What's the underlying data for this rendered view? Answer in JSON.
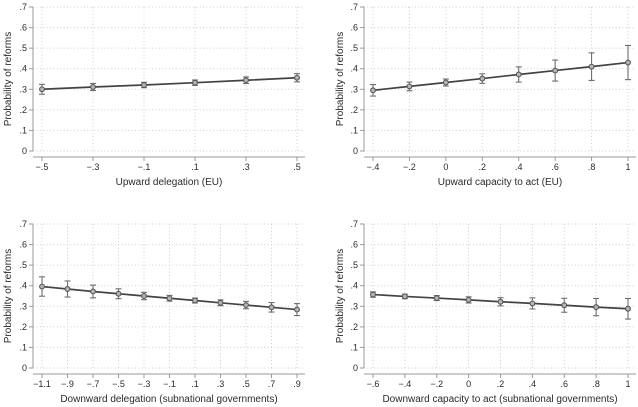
{
  "figure": {
    "ylabel": "Probability of reforms",
    "background": "#ffffff"
  },
  "colors": {
    "line": "#434343",
    "marker_fill": "#b5b5b5",
    "marker_stroke": "#565656",
    "error_bar": "#6d6d6d",
    "grid": "#c9cdd0",
    "axis": "#9a9a9a",
    "text": "#2b2b2b"
  },
  "chart_data": [
    {
      "type": "line",
      "title": "",
      "xlabel": "Upward delegation (EU)",
      "ylabel": "Probability of reforms",
      "grid": true,
      "error_bars": true,
      "marker": "circle",
      "ylim": [
        0,
        0.7
      ],
      "yticks": [
        0,
        0.1,
        0.2,
        0.3,
        0.4,
        0.5,
        0.6,
        0.7
      ],
      "ytick_labels": [
        "0",
        ".1",
        ".2",
        ".3",
        ".4",
        ".5",
        ".6",
        ".7"
      ],
      "xticks": [
        -0.5,
        -0.3,
        -0.1,
        0.1,
        0.3,
        0.5
      ],
      "xtick_labels": [
        "−.5",
        "−.3",
        "−.1",
        ".1",
        ".3",
        ".5"
      ],
      "x": [
        -0.5,
        -0.3,
        -0.1,
        0.1,
        0.3,
        0.5
      ],
      "y": [
        0.3,
        0.311,
        0.321,
        0.332,
        0.344,
        0.356
      ],
      "ci_low": [
        0.276,
        0.294,
        0.308,
        0.319,
        0.328,
        0.336
      ],
      "ci_high": [
        0.324,
        0.328,
        0.334,
        0.345,
        0.36,
        0.376
      ]
    },
    {
      "type": "line",
      "title": "",
      "xlabel": "Upward capacity to act (EU)",
      "ylabel": "Probability of reforms",
      "grid": true,
      "error_bars": true,
      "marker": "circle",
      "ylim": [
        0,
        0.7
      ],
      "yticks": [
        0,
        0.1,
        0.2,
        0.3,
        0.4,
        0.5,
        0.6,
        0.7
      ],
      "ytick_labels": [
        "0",
        ".1",
        ".2",
        ".3",
        ".4",
        ".5",
        ".6",
        ".7"
      ],
      "xticks": [
        -0.4,
        -0.2,
        0,
        0.2,
        0.4,
        0.6,
        0.8,
        1
      ],
      "xtick_labels": [
        "−.4",
        "−.2",
        "0",
        ".2",
        ".4",
        ".6",
        ".8",
        "1"
      ],
      "x": [
        -0.4,
        -0.2,
        0,
        0.2,
        0.4,
        0.6,
        0.8,
        1
      ],
      "y": [
        0.295,
        0.314,
        0.333,
        0.352,
        0.372,
        0.391,
        0.41,
        0.43
      ],
      "ci_low": [
        0.267,
        0.293,
        0.316,
        0.329,
        0.335,
        0.34,
        0.343,
        0.347
      ],
      "ci_high": [
        0.323,
        0.335,
        0.35,
        0.375,
        0.409,
        0.442,
        0.477,
        0.513
      ]
    },
    {
      "type": "line",
      "title": "",
      "xlabel": "Downward delegation (subnational governments)",
      "ylabel": "Probability of reforms",
      "grid": true,
      "error_bars": true,
      "marker": "circle",
      "ylim": [
        0,
        0.7
      ],
      "yticks": [
        0,
        0.1,
        0.2,
        0.3,
        0.4,
        0.5,
        0.6,
        0.7
      ],
      "ytick_labels": [
        "0",
        ".1",
        ".2",
        ".3",
        ".4",
        ".5",
        ".6",
        ".7"
      ],
      "xticks": [
        -1.1,
        -0.9,
        -0.7,
        -0.5,
        -0.3,
        -0.1,
        0.1,
        0.3,
        0.5,
        0.7,
        0.9
      ],
      "xtick_labels": [
        "−1.1",
        "−.9",
        "−.7",
        "−.5",
        "−.3",
        "−.1",
        ".1",
        ".3",
        ".5",
        ".7",
        ".9"
      ],
      "x": [
        -1.1,
        -0.9,
        -0.7,
        -0.5,
        -0.3,
        -0.1,
        0.1,
        0.3,
        0.5,
        0.7,
        0.9
      ],
      "y": [
        0.396,
        0.384,
        0.372,
        0.361,
        0.35,
        0.339,
        0.328,
        0.317,
        0.306,
        0.295,
        0.284
      ],
      "ci_low": [
        0.349,
        0.345,
        0.341,
        0.337,
        0.332,
        0.325,
        0.316,
        0.303,
        0.288,
        0.272,
        0.255
      ],
      "ci_high": [
        0.443,
        0.423,
        0.403,
        0.385,
        0.368,
        0.353,
        0.34,
        0.331,
        0.324,
        0.318,
        0.313
      ]
    },
    {
      "type": "line",
      "title": "",
      "xlabel": "Downward capacity to act (subnational governments)",
      "ylabel": "Probability of reforms",
      "grid": true,
      "error_bars": true,
      "marker": "circle",
      "ylim": [
        0,
        0.7
      ],
      "yticks": [
        0,
        0.1,
        0.2,
        0.3,
        0.4,
        0.5,
        0.6,
        0.7
      ],
      "ytick_labels": [
        "0",
        ".1",
        ".2",
        ".3",
        ".4",
        ".5",
        ".6",
        ".7"
      ],
      "xticks": [
        -0.6,
        -0.4,
        -0.2,
        0,
        0.2,
        0.4,
        0.6,
        0.8,
        1
      ],
      "xtick_labels": [
        "−.6",
        "−.4",
        "−.2",
        "0",
        ".2",
        ".4",
        ".6",
        ".8",
        "1"
      ],
      "x": [
        -0.6,
        -0.4,
        -0.2,
        0,
        0.2,
        0.4,
        0.6,
        0.8,
        1
      ],
      "y": [
        0.357,
        0.348,
        0.34,
        0.331,
        0.322,
        0.314,
        0.305,
        0.296,
        0.288
      ],
      "ci_low": [
        0.344,
        0.337,
        0.328,
        0.316,
        0.302,
        0.287,
        0.271,
        0.254,
        0.238
      ],
      "ci_high": [
        0.37,
        0.359,
        0.352,
        0.346,
        0.342,
        0.341,
        0.339,
        0.338,
        0.338
      ]
    }
  ]
}
